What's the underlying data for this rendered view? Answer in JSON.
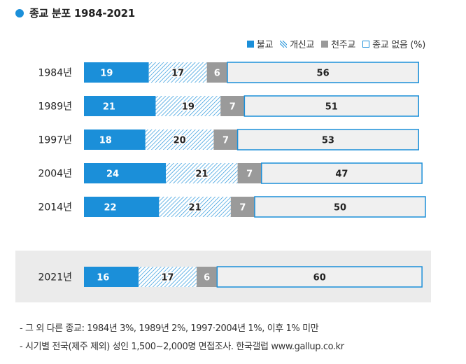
{
  "title": "종교 분포 1984-2021",
  "legend": [
    {
      "label": "불교",
      "kind": "solid"
    },
    {
      "label": "개신교",
      "kind": "hatch"
    },
    {
      "label": "천주교",
      "kind": "gray"
    },
    {
      "label": "종교 없음 (%)",
      "kind": "outline"
    }
  ],
  "colors": {
    "buddhism": "#1b8fd9",
    "protestant_hatch": "#1b8fd9",
    "catholic": "#9a9a9a",
    "none_fill": "#f0f0f0",
    "none_border": "#1b8fd9",
    "highlight_bg": "#ebebeb",
    "title_dot": "#1b8fd9"
  },
  "chart_data": {
    "type": "bar",
    "orientation": "horizontal",
    "stacked": true,
    "title": "종교 분포 1984-2021",
    "unit": "%",
    "categories": [
      "1984년",
      "1989년",
      "1997년",
      "2004년",
      "2014년",
      "2021년"
    ],
    "series": [
      {
        "name": "불교",
        "values": [
          19,
          21,
          18,
          24,
          22,
          16
        ]
      },
      {
        "name": "개신교",
        "values": [
          17,
          19,
          20,
          21,
          21,
          17
        ]
      },
      {
        "name": "천주교",
        "values": [
          6,
          7,
          7,
          7,
          7,
          6
        ]
      },
      {
        "name": "종교 없음",
        "values": [
          56,
          51,
          53,
          47,
          50,
          60
        ]
      }
    ]
  },
  "footnotes": [
    "- 그 외 다른 종교: 1984년 3%, 1989년 2%, 1997·2004년 1%, 이후 1% 미만",
    "- 시기별 전국(제주 제외) 성인 1,500~2,000명 면접조사. 한국갤럽 www.gallup.co.kr"
  ]
}
